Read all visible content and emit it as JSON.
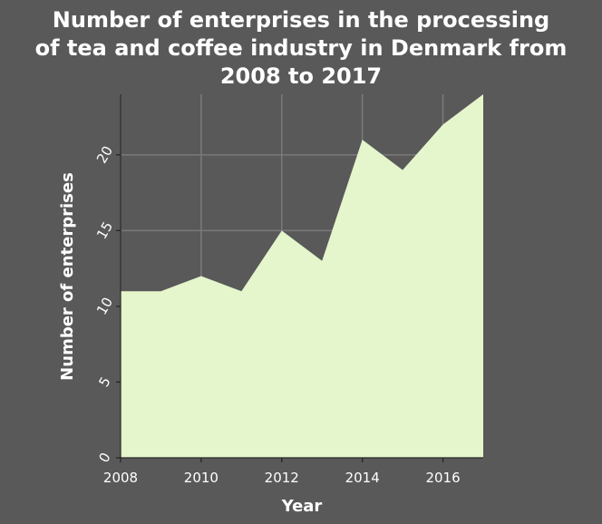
{
  "chart_data": {
    "type": "area",
    "title_lines": [
      "Number of enterprises in the processing",
      "of tea and coffee industry in Denmark from",
      "2008 to 2017"
    ],
    "xlabel": "Year",
    "ylabel": "Number of enterprises",
    "x": [
      2008,
      2009,
      2010,
      2011,
      2012,
      2013,
      2014,
      2015,
      2016,
      2017
    ],
    "values": [
      11,
      11,
      12,
      11,
      15,
      13,
      21,
      19,
      22,
      24
    ],
    "xlim": [
      2008,
      2017
    ],
    "ylim": [
      0,
      24
    ],
    "xticks": [
      2008,
      2010,
      2012,
      2014,
      2016
    ],
    "yticks": [
      0,
      5,
      10,
      15,
      20
    ],
    "grid": true,
    "colors": {
      "background": "#595959",
      "plot_background": "#595959",
      "area_fill": "#e5f5cc",
      "grid": "#7a7a7a",
      "text": "#ffffff"
    }
  }
}
